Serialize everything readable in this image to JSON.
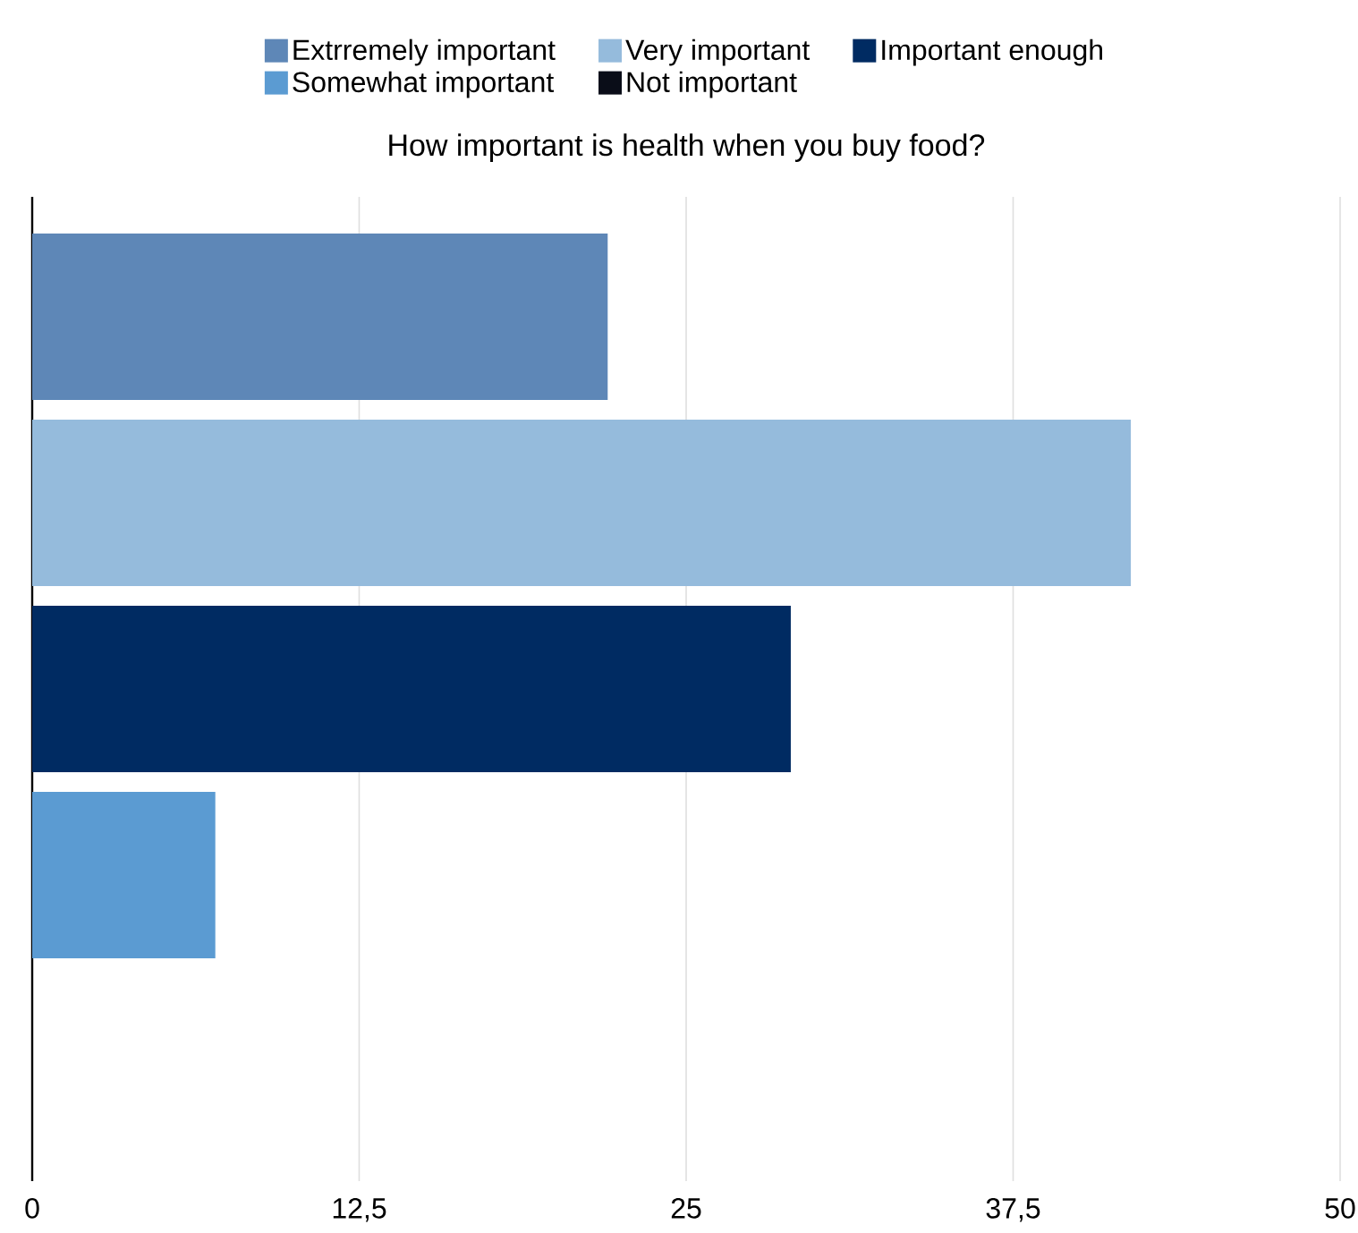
{
  "chart_data": {
    "type": "bar",
    "orientation": "horizontal",
    "title": "How important is health when you buy food?",
    "categories": [
      null
    ],
    "series": [
      {
        "name": "Extrremely important",
        "color": "#5e87b7",
        "values": [
          22
        ]
      },
      {
        "name": "Very important",
        "color": "#95bbdc",
        "values": [
          42
        ]
      },
      {
        "name": "Important enough",
        "color": "#002b62",
        "values": [
          29
        ]
      },
      {
        "name": "Somewhat important",
        "color": "#5b9bd2",
        "values": [
          7
        ]
      },
      {
        "name": "Not important",
        "color": "#0a0d18",
        "values": [
          0
        ]
      }
    ],
    "xlim": [
      0,
      50
    ],
    "xticks": [
      0,
      {
        "value": 12.5,
        "label": "12,5"
      },
      25,
      {
        "value": 37.5,
        "label": "37,5"
      },
      50
    ],
    "grid": "x",
    "legend": "top"
  }
}
